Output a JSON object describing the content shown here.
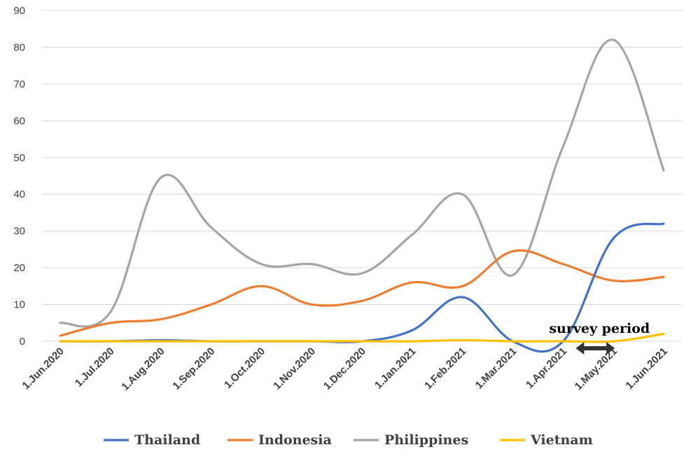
{
  "chart_data": {
    "type": "line",
    "x": [
      "1.Jun.2020",
      "1.Jul.2020",
      "1.Aug.2020",
      "1.Sep.2020",
      "1.Oct.2020",
      "1.Nov.2020",
      "1.Dec.2020",
      "1.Jan.2021",
      "1.Feb.2021",
      "1.Mar.2021",
      "1.Apr.2021",
      "1.May.2021",
      "1.Jun.2021"
    ],
    "ylim": [
      0,
      90
    ],
    "yticks": [
      0,
      10,
      20,
      30,
      40,
      50,
      60,
      70,
      80,
      90
    ],
    "grid": true,
    "legend_position": "bottom",
    "series": [
      {
        "name": "Thailand",
        "color": "#4472C4",
        "values": [
          0,
          0,
          0.3,
          0,
          0,
          0,
          0,
          3,
          12,
          0,
          0,
          28,
          32
        ]
      },
      {
        "name": "Indonesia",
        "color": "#ED7D31",
        "values": [
          1.5,
          5,
          6,
          10,
          15,
          10,
          11,
          16,
          15,
          24.5,
          21,
          16.5,
          17.5
        ]
      },
      {
        "name": "Philippines",
        "color": "#A5A5A5",
        "values": [
          5,
          8,
          44.5,
          31,
          21,
          21,
          18.5,
          29,
          40,
          18,
          53,
          82,
          46.5
        ]
      },
      {
        "name": "Vietnam",
        "color": "#FFC000",
        "values": [
          0,
          0,
          0,
          0,
          0,
          0,
          0,
          0,
          0.3,
          0,
          0,
          0,
          2
        ]
      }
    ],
    "annotations": [
      {
        "text": "survey period",
        "from": "1.Apr.2021",
        "to": "1.May.2021"
      }
    ]
  }
}
